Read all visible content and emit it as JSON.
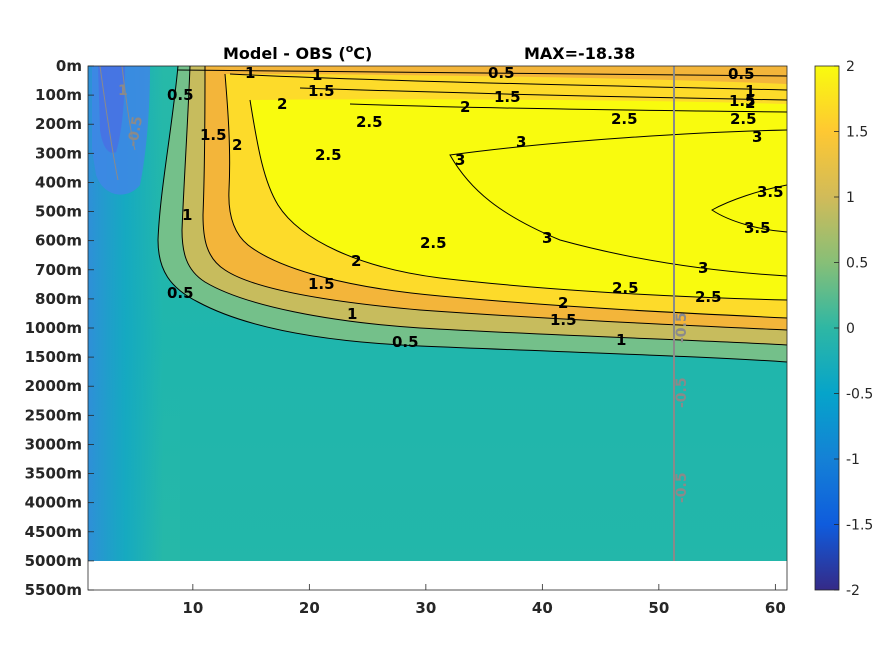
{
  "chart_data": {
    "type": "heatmap",
    "title": "Model - OBS (",
    "title_unit_sup": "o",
    "title_unit_end": "C)",
    "max_label": "MAX=-18.38",
    "xlabel": "",
    "ylabel": "",
    "x_range": [
      1,
      61
    ],
    "x_ticks": [
      10,
      20,
      30,
      40,
      50,
      60
    ],
    "x_tick_labels": [
      "10",
      "20",
      "30",
      "40",
      "50",
      "60"
    ],
    "y_tick_labels": [
      "0m",
      "100m",
      "200m",
      "300m",
      "400m",
      "500m",
      "600m",
      "700m",
      "800m",
      "1000m",
      "1500m",
      "2000m",
      "2500m",
      "3000m",
      "3500m",
      "4000m",
      "4500m",
      "5000m",
      "5500m"
    ],
    "data_bottom_label": "5000m",
    "colorbar": {
      "range": [
        -2,
        2
      ],
      "ticks": [
        2,
        1.5,
        1,
        0.5,
        0,
        -0.5,
        -1,
        -1.5,
        -2
      ],
      "tick_labels": [
        "2",
        "1.5",
        "1",
        "0.5",
        "0",
        "-0.5",
        "-1",
        "-1.5",
        "-2"
      ],
      "colormap": "parula",
      "colors": [
        "#352a87",
        "#0f5cdd",
        "#1481d6",
        "#06a4ca",
        "#2eb7a4",
        "#87bf77",
        "#d1bb59",
        "#fec832",
        "#f9fb0e"
      ]
    },
    "contours": [
      {
        "level": "0.5",
        "labels": [
          "0.5",
          "0.5",
          "0.5",
          "0.5",
          "0.5"
        ]
      },
      {
        "level": "1",
        "labels": [
          "1",
          "1",
          "1",
          "1",
          "1",
          "1"
        ]
      },
      {
        "level": "1.5",
        "labels": [
          "1.5",
          "1.5",
          "1.5",
          "1.5",
          "1.5",
          "1.5"
        ]
      },
      {
        "level": "2",
        "labels": [
          "2",
          "2",
          "2",
          "2",
          "2",
          "2"
        ]
      },
      {
        "level": "2.5",
        "labels": [
          "2.5",
          "2.5",
          "2.5",
          "2.5",
          "2.5",
          "2.5"
        ]
      },
      {
        "level": "3",
        "labels": [
          "3",
          "3",
          "3",
          "3",
          "3"
        ]
      },
      {
        "level": "3.5",
        "labels": [
          "3.5",
          "3.5"
        ]
      }
    ],
    "grey_labels": [
      "1",
      "-0.5",
      "-0.5",
      "-0.5",
      "-0.5"
    ],
    "vertical_section_x": 51.3
  }
}
